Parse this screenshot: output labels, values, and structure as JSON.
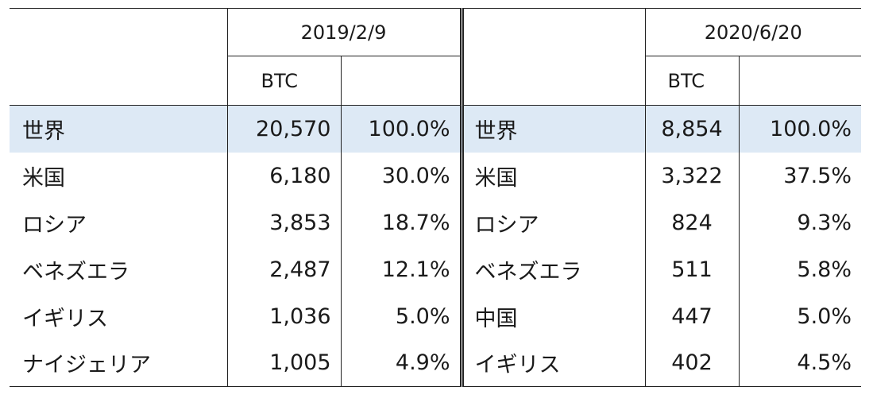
{
  "headers": {
    "date_left": "2019/2/9",
    "date_right": "2020/6/20",
    "unit_left": "BTC",
    "unit_right": "BTC"
  },
  "rows": [
    {
      "country_left": "世界",
      "btc_left": "20,570",
      "pct_left": "100.0%",
      "country_right": "世界",
      "btc_right": "8,854",
      "pct_right": "100.0%"
    },
    {
      "country_left": "米国",
      "btc_left": "6,180",
      "pct_left": "30.0%",
      "country_right": "米国",
      "btc_right": "3,322",
      "pct_right": "37.5%"
    },
    {
      "country_left": "ロシア",
      "btc_left": "3,853",
      "pct_left": "18.7%",
      "country_right": "ロシア",
      "btc_right": "824",
      "pct_right": "9.3%"
    },
    {
      "country_left": "ベネズエラ",
      "btc_left": "2,487",
      "pct_left": "12.1%",
      "country_right": "ベネズエラ",
      "btc_right": "511",
      "pct_right": "5.8%"
    },
    {
      "country_left": "イギリス",
      "btc_left": "1,036",
      "pct_left": "5.0%",
      "country_right": "中国",
      "btc_right": "447",
      "pct_right": "5.0%"
    },
    {
      "country_left": "ナイジェリア",
      "btc_left": "1,005",
      "pct_left": "4.9%",
      "country_right": "イギリス",
      "btc_right": "402",
      "pct_right": "4.5%"
    }
  ],
  "colors": {
    "highlight_row": "#dde9f5",
    "border": "#222222"
  }
}
